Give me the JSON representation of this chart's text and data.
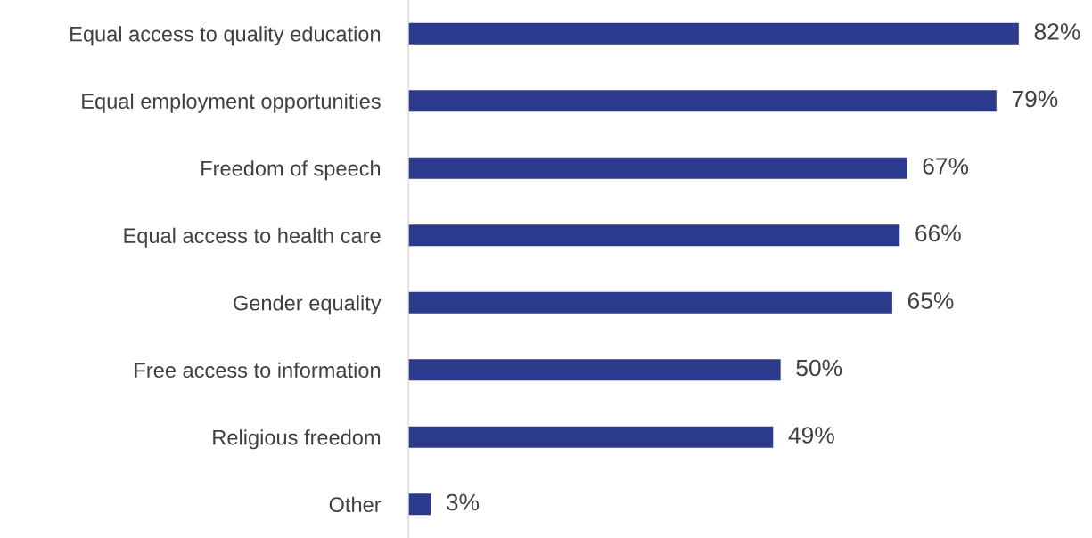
{
  "chart_data": {
    "type": "bar",
    "orientation": "horizontal",
    "categories": [
      "Equal access to quality education",
      "Equal employment opportunities",
      "Freedom of speech",
      "Equal access to health care",
      "Gender equality",
      "Free access to information",
      "Religious freedom",
      "Other"
    ],
    "values": [
      82,
      79,
      67,
      66,
      65,
      50,
      49,
      3
    ],
    "value_labels": [
      "82%",
      "79%",
      "67%",
      "66%",
      "65%",
      "50%",
      "49%",
      "3%"
    ],
    "color": "#2b3a8c",
    "grid": false,
    "legend": false,
    "tick_labels": "y"
  }
}
